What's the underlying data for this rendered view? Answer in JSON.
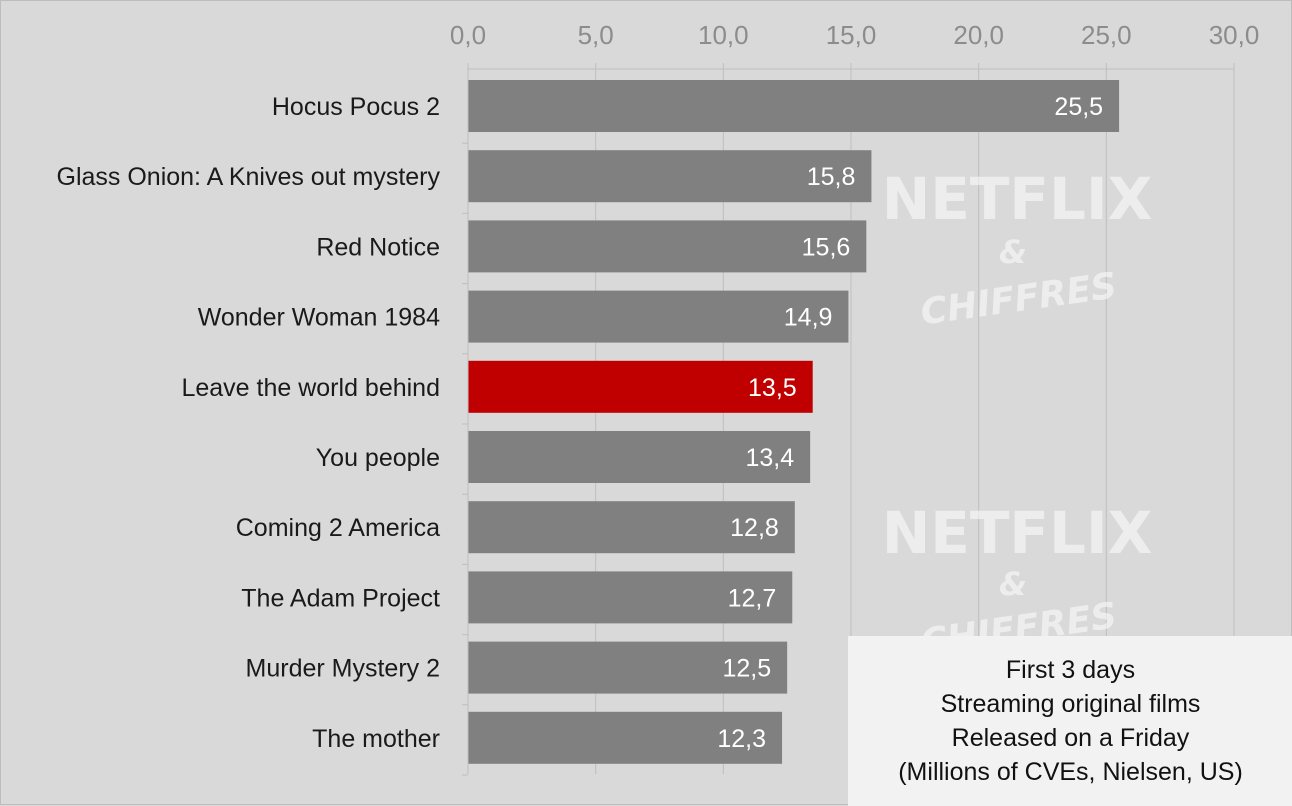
{
  "chart_data": {
    "type": "bar",
    "orientation": "horizontal",
    "categories": [
      "Hocus Pocus 2",
      "Glass Onion: A Knives out mystery",
      "Red Notice",
      "Wonder Woman 1984",
      "Leave the world behind",
      "You people",
      "Coming 2 America",
      "The Adam Project",
      "Murder Mystery 2",
      "The mother"
    ],
    "values": [
      25.5,
      15.8,
      15.6,
      14.9,
      13.5,
      13.4,
      12.8,
      12.7,
      12.5,
      12.3
    ],
    "value_labels": [
      "25,5",
      "15,8",
      "15,6",
      "14,9",
      "13,5",
      "13,4",
      "12,8",
      "12,7",
      "12,5",
      "12,3"
    ],
    "highlight_index": 4,
    "xlim": [
      0,
      30
    ],
    "x_ticks": [
      0,
      5,
      10,
      15,
      20,
      25,
      30
    ],
    "x_tick_labels": [
      "0,0",
      "5,0",
      "10,0",
      "15,0",
      "20,0",
      "25,0",
      "30,0"
    ],
    "x_axis_position": "top",
    "grid": true,
    "title": "",
    "xlabel": "",
    "ylabel": "",
    "colors": {
      "bar": "#808080",
      "highlight": "#c00000",
      "background": "#d9d9d9",
      "grid": "#bfbfbf"
    }
  },
  "note": {
    "lines": [
      "First 3 days",
      "Streaming original films",
      "Released on a Friday",
      "(Millions of CVEs, Nielsen, US)"
    ]
  },
  "watermark": {
    "brand": "NETFLIX",
    "amp": "&",
    "sub": "CHIFFRES"
  }
}
